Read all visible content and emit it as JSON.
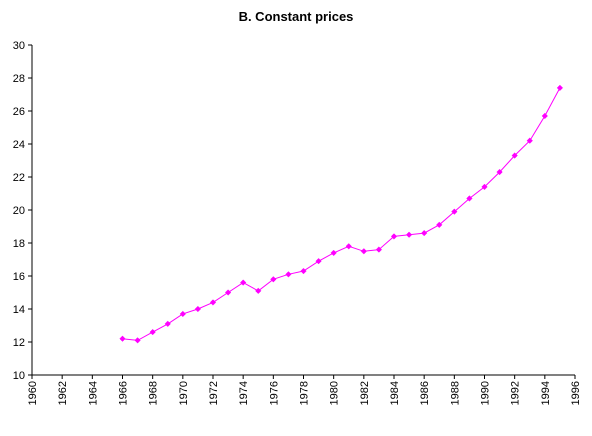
{
  "chart_data": {
    "type": "line",
    "title": "B. Constant prices",
    "xlabel": "",
    "ylabel": "",
    "xlim": [
      1960,
      1996
    ],
    "ylim": [
      10,
      30
    ],
    "y_ticks": [
      10,
      12,
      14,
      16,
      18,
      20,
      22,
      24,
      26,
      28,
      30
    ],
    "x_ticks": [
      1960,
      1962,
      1964,
      1966,
      1968,
      1970,
      1972,
      1974,
      1976,
      1978,
      1980,
      1982,
      1984,
      1986,
      1988,
      1990,
      1992,
      1994,
      1996
    ],
    "grid": false,
    "legend": "none",
    "series": [
      {
        "color": "#ff00ff",
        "marker": "diamond",
        "x": [
          1966,
          1967,
          1968,
          1969,
          1970,
          1971,
          1972,
          1973,
          1974,
          1975,
          1976,
          1977,
          1978,
          1979,
          1980,
          1981,
          1982,
          1983,
          1984,
          1985,
          1986,
          1987,
          1988,
          1989,
          1990,
          1991,
          1992,
          1993,
          1994,
          1995
        ],
        "y": [
          12.2,
          12.1,
          12.6,
          13.1,
          13.7,
          14.0,
          14.4,
          15.0,
          15.6,
          15.1,
          15.8,
          16.1,
          16.3,
          16.9,
          17.4,
          17.8,
          17.5,
          17.6,
          18.4,
          18.5,
          18.6,
          19.1,
          19.9,
          20.7,
          21.4,
          22.3,
          23.3,
          24.2,
          25.7,
          27.4
        ]
      }
    ]
  }
}
